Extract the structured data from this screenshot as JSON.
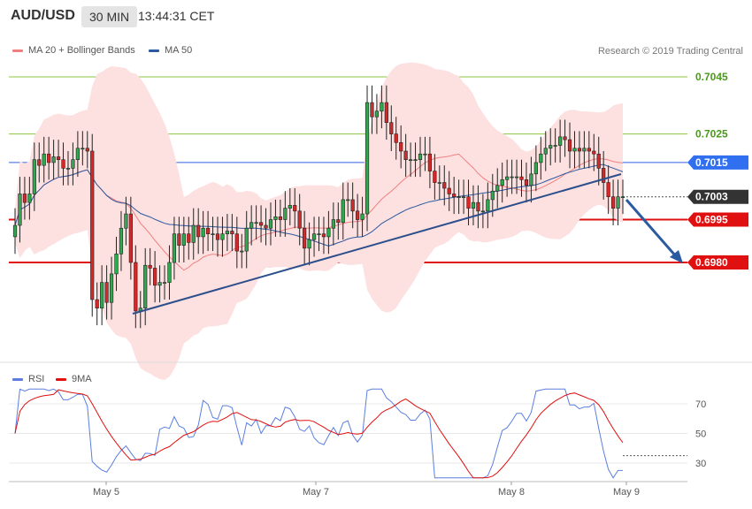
{
  "header": {
    "symbol": "AUD/USD",
    "timeframe": "30 MIN",
    "time": "13:44:31 CET"
  },
  "legend": {
    "ma20": {
      "label": "MA 20 + Bollinger Bands",
      "color": "#f08080"
    },
    "ma50": {
      "label": "MA 50",
      "color": "#2c5aa0"
    },
    "rsi": {
      "label": "RSI",
      "color": "#5b7fe0"
    },
    "ma9": {
      "label": "9MA",
      "color": "#e01010"
    }
  },
  "copyright": "Research © 2019 Trading Central",
  "chart_data": [
    {
      "type": "candlestick",
      "ylim": [
        0.6952,
        0.7066
      ],
      "x_labels": [
        "May 5",
        "May 7",
        "May 8",
        "May 9"
      ],
      "price_levels": [
        {
          "label": "0.7045",
          "value": 0.7045,
          "style": "target-green"
        },
        {
          "label": "0.7025",
          "value": 0.7025,
          "style": "target-green"
        },
        {
          "label": "0.7015",
          "value": 0.7015,
          "style": "pivot-blue"
        },
        {
          "label": "0.7003",
          "value": 0.7003,
          "style": "last-price"
        },
        {
          "label": "0.6995",
          "value": 0.6995,
          "style": "support-red"
        },
        {
          "label": "0.6980",
          "value": 0.698,
          "style": "support-red"
        }
      ],
      "ohlc_close": [
        0.6993,
        0.7004,
        0.7001,
        0.7004,
        0.7016,
        0.7014,
        0.7018,
        0.7015,
        0.7017,
        0.7016,
        0.7013,
        0.7013,
        0.7016,
        0.702,
        0.702,
        0.7019,
        0.6967,
        0.6964,
        0.6973,
        0.6966,
        0.6976,
        0.6983,
        0.6992,
        0.6997,
        0.698,
        0.6963,
        0.6964,
        0.6979,
        0.6978,
        0.6972,
        0.6973,
        0.6973,
        0.698,
        0.699,
        0.6986,
        0.699,
        0.6987,
        0.6993,
        0.6989,
        0.6992,
        0.699,
        0.699,
        0.6988,
        0.699,
        0.6991,
        0.699,
        0.6984,
        0.6984,
        0.6992,
        0.6994,
        0.6994,
        0.6993,
        0.6992,
        0.6995,
        0.6996,
        0.6995,
        0.6999,
        0.7,
        0.6998,
        0.6992,
        0.6985,
        0.6988,
        0.699,
        0.699,
        0.6989,
        0.6992,
        0.6995,
        0.6994,
        0.7002,
        0.7002,
        0.6998,
        0.6995,
        0.6997,
        0.7036,
        0.7031,
        0.7033,
        0.7036,
        0.7029,
        0.7025,
        0.7022,
        0.7019,
        0.7016,
        0.7016,
        0.7016,
        0.7018,
        0.7018,
        0.7012,
        0.7008,
        0.7008,
        0.7006,
        0.7004,
        0.7003,
        0.7003,
        0.7003,
        0.6999,
        0.7001,
        0.6998,
        0.6998,
        0.7002,
        0.7005,
        0.7007,
        0.7009,
        0.701,
        0.701,
        0.701,
        0.7009,
        0.7007,
        0.7011,
        0.7015,
        0.7018,
        0.702,
        0.7021,
        0.7021,
        0.7024,
        0.7023,
        0.7019,
        0.702,
        0.7019,
        0.702,
        0.7019,
        0.7018,
        0.7013,
        0.7008,
        0.7003,
        0.6999,
        0.7003,
        0.7003
      ]
    },
    {
      "type": "line",
      "title": "RSI",
      "ylim": [
        18,
        83
      ],
      "y_ticks": [
        30,
        50,
        70
      ],
      "series": [
        {
          "name": "RSI",
          "color": "#5b7fe0"
        },
        {
          "name": "9MA",
          "color": "#e01010"
        }
      ]
    }
  ]
}
